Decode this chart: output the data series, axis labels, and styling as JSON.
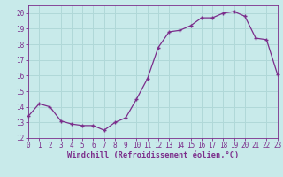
{
  "x": [
    0,
    1,
    2,
    3,
    4,
    5,
    6,
    7,
    8,
    9,
    10,
    11,
    12,
    13,
    14,
    15,
    16,
    17,
    18,
    19,
    20,
    21,
    22,
    23
  ],
  "y": [
    13.4,
    14.2,
    14.0,
    13.1,
    12.9,
    12.8,
    12.8,
    12.5,
    13.0,
    13.3,
    14.5,
    15.8,
    17.8,
    18.8,
    18.9,
    19.2,
    19.7,
    19.7,
    20.0,
    20.1,
    19.8,
    18.4,
    18.3,
    16.1
  ],
  "line_color": "#7b2d8b",
  "marker": "+",
  "bg_color": "#c8eaea",
  "grid_color": "#b0d8d8",
  "xlabel": "Windchill (Refroidissement éolien,°C)",
  "xlabel_color": "#7b2d8b",
  "tick_color": "#7b2d8b",
  "spine_color": "#7b2d8b",
  "ylim": [
    12,
    20.5
  ],
  "xlim": [
    0,
    23
  ],
  "yticks": [
    12,
    13,
    14,
    15,
    16,
    17,
    18,
    19,
    20
  ],
  "xticks": [
    0,
    1,
    2,
    3,
    4,
    5,
    6,
    7,
    8,
    9,
    10,
    11,
    12,
    13,
    14,
    15,
    16,
    17,
    18,
    19,
    20,
    21,
    22,
    23
  ],
  "linewidth": 0.9,
  "markersize": 3.5,
  "tick_fontsize": 5.5,
  "xlabel_fontsize": 6.2
}
